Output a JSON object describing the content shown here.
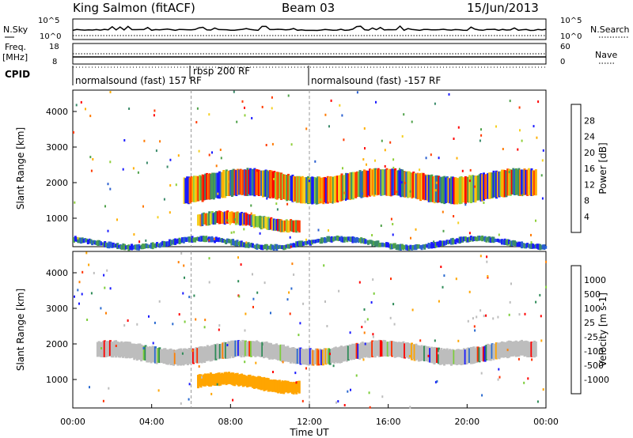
{
  "header": {
    "station": "King Salmon (fitACF)",
    "beam": "Beam 03",
    "date": "15/Jun/2013"
  },
  "top_panels": {
    "nsky_label": "N.Sky",
    "nsearch_label": "N.Search",
    "freq_label_1": "Freq.",
    "freq_label_2": "[MHz]",
    "nave_label": "Nave",
    "cpid_label": "CPID",
    "noise_left_ticks": [
      "10^5",
      "10^0"
    ],
    "noise_right_ticks": [
      "10^5",
      "10^0"
    ],
    "freq_left_ticks": [
      "18",
      "8"
    ],
    "freq_right_ticks": [
      "60",
      "0"
    ],
    "cpid_segments": [
      {
        "label": "normalsound (fast) 157 RF",
        "start_hour": 0,
        "end_hour": 6
      },
      {
        "label": "rbsp 200 RF",
        "start_hour": 6,
        "end_hour": 12
      },
      {
        "label": "normalsound (fast) -157 RF",
        "start_hour": 12,
        "end_hour": 24
      }
    ]
  },
  "chart_data": [
    {
      "type": "heatmap",
      "panel": "power",
      "ylabel": "Slant Range [km]",
      "xlabel": "",
      "ylim": [
        200,
        4600
      ],
      "xlim_hours": [
        0,
        24
      ],
      "yticks": [
        1000,
        2000,
        3000,
        4000
      ],
      "colorbar": {
        "label": "Power [dB]",
        "ticks": [
          "4",
          "8",
          "12",
          "16",
          "20",
          "24",
          "28"
        ],
        "colors": [
          "#1a1aff",
          "#2a5fd0",
          "#3a8a6a",
          "#4fa24a",
          "#8fcf3a",
          "#f5d020",
          "#ffb000",
          "#ff7a00",
          "#ff3a00",
          "#ff0000"
        ]
      },
      "echo_bands": [
        {
          "start_hour": 5.6,
          "end_hour": 23.5,
          "range_start_km": 1500,
          "range_end_km": 2300
        },
        {
          "start_hour": 6.3,
          "end_hour": 11.5,
          "range_start_km": 700,
          "range_end_km": 1100
        },
        {
          "start_hour": 0,
          "end_hour": 24,
          "range_start_km": 200,
          "range_end_km": 400
        }
      ]
    },
    {
      "type": "heatmap",
      "panel": "velocity",
      "ylabel": "Slant Range [km]",
      "xlabel": "Time UT",
      "ylim": [
        200,
        4600
      ],
      "xlim_hours": [
        0,
        24
      ],
      "yticks": [
        1000,
        2000,
        3000,
        4000
      ],
      "xticks": [
        "00:00",
        "04:00",
        "08:00",
        "12:00",
        "16:00",
        "20:00",
        "00:00"
      ],
      "colorbar": {
        "label": "Velocity [m s-1]",
        "ticks": [
          "1000",
          "500",
          "100",
          "25",
          "-25",
          "-100",
          "-500",
          "-1000"
        ],
        "colors": [
          "#1a1aff",
          "#2a6ad0",
          "#2e8b57",
          "#7ccd3a",
          "#bdbdbd",
          "#bdbdbd",
          "#ffa500",
          "#ff7f00",
          "#ff3000",
          "#ff0000"
        ]
      },
      "echo_bands": [
        {
          "start_hour": 1.2,
          "end_hour": 23.5,
          "range_start_km": 1500,
          "range_end_km": 2000
        },
        {
          "start_hour": 6.3,
          "end_hour": 11.5,
          "range_start_km": 700,
          "range_end_km": 1100
        }
      ]
    }
  ]
}
